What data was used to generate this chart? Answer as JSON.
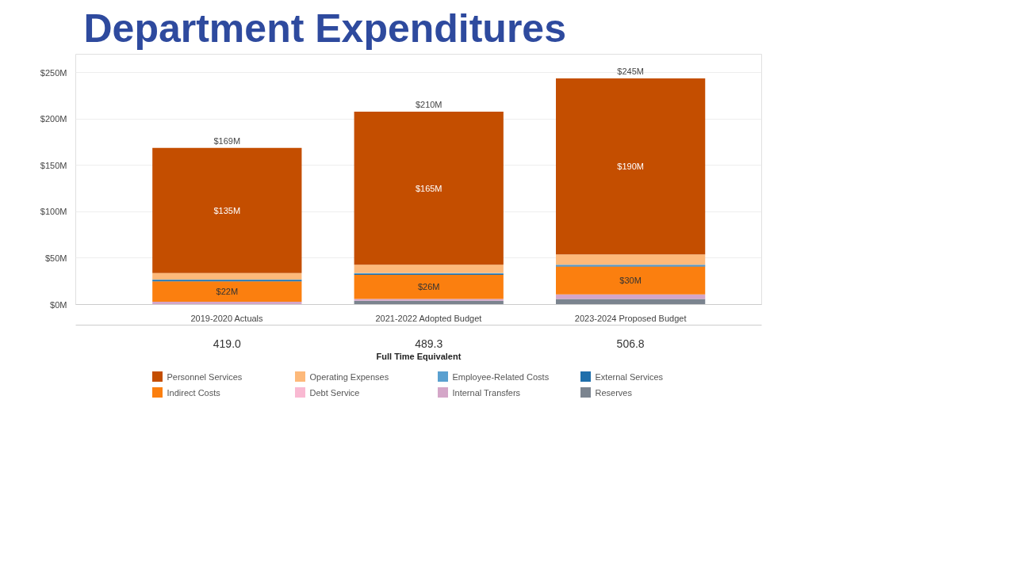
{
  "chart_data": {
    "type": "bar",
    "stacked": true,
    "title": "Department Expenditures",
    "categories": [
      "2019-2020 Actuals",
      "2021-2022 Adopted Budget",
      "2023-2024 Proposed Budget"
    ],
    "series": [
      {
        "name": "Reserves",
        "color": "#7b848f",
        "values": [
          0,
          4,
          6
        ]
      },
      {
        "name": "Internal Transfers",
        "color": "#d4a6c8",
        "values": [
          3,
          2,
          5
        ]
      },
      {
        "name": "Debt Service",
        "color": "#f9b9d2",
        "values": [
          0,
          0,
          0
        ]
      },
      {
        "name": "Indirect Costs",
        "color": "#fb7f0f",
        "values": [
          22,
          26,
          30
        ],
        "value_labels": [
          "$22M",
          "$26M",
          "$30M"
        ]
      },
      {
        "name": "External Services",
        "color": "#1f6fab",
        "values": [
          1,
          1,
          1
        ]
      },
      {
        "name": "Employee-Related Costs",
        "color": "#5aa0d0",
        "values": [
          1,
          1,
          1
        ]
      },
      {
        "name": "Operating Expenses",
        "color": "#fdb97a",
        "values": [
          7,
          9,
          11
        ]
      },
      {
        "name": "Personnel Services",
        "color": "#c44e00",
        "values": [
          135,
          165,
          190
        ],
        "value_labels": [
          "$135M",
          "$165M",
          "$190M"
        ]
      }
    ],
    "totals": [
      "$169M",
      "$210M",
      "$245M"
    ],
    "ylim": [
      0,
      270
    ],
    "yticks": [
      {
        "value": 0,
        "label": "$0M"
      },
      {
        "value": 50,
        "label": "$50M"
      },
      {
        "value": 100,
        "label": "$100M"
      },
      {
        "value": 150,
        "label": "$150M"
      },
      {
        "value": 200,
        "label": "$200M"
      },
      {
        "value": 250,
        "label": "$250M"
      }
    ],
    "grid": "y",
    "legend": "bottom",
    "annotations": [
      "Full Time Equivalent",
      "419.0",
      "489.3",
      "506.8"
    ]
  }
}
